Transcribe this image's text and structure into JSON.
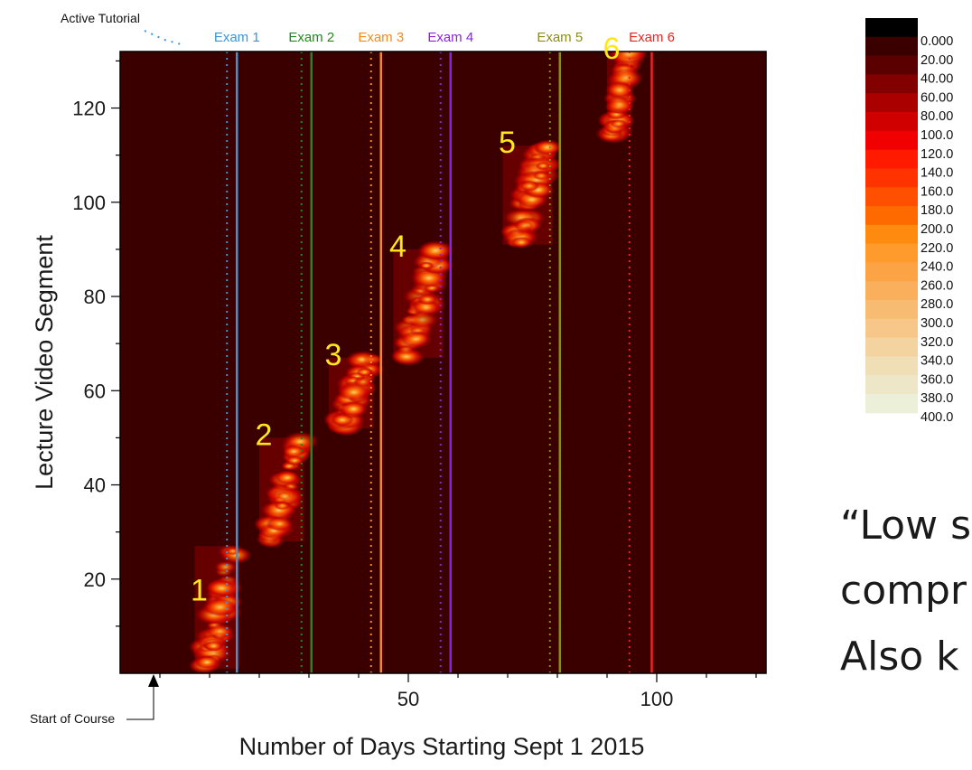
{
  "chart_data": {
    "type": "heatmap",
    "title": "",
    "xlabel": "Number of Days Starting Sept 1 2015",
    "ylabel": "Lecture Video Segment",
    "xlim": [
      -8,
      122
    ],
    "ylim": [
      0,
      132
    ],
    "x_ticks": [
      50,
      100
    ],
    "y_ticks": [
      20,
      40,
      60,
      80,
      100,
      120
    ],
    "grid": false,
    "background_color": "#3a0000",
    "exams": [
      {
        "label": "Exam 1",
        "day": 15.5,
        "tutorial_day": 13.5,
        "color": "#3b95d6"
      },
      {
        "label": "Exam 2",
        "day": 30.5,
        "tutorial_day": 28.5,
        "color": "#1e8a1e"
      },
      {
        "label": "Exam 3",
        "day": 44.5,
        "tutorial_day": 42.5,
        "color": "#f58a20"
      },
      {
        "label": "Exam 4",
        "day": 58.5,
        "tutorial_day": 56.5,
        "color": "#8b22e0"
      },
      {
        "label": "Exam 5",
        "day": 80.5,
        "tutorial_day": 78.5,
        "color": "#8c8c1a"
      },
      {
        "label": "Exam 6",
        "day": 99,
        "tutorial_day": 94.5,
        "color": "#ee2222"
      }
    ],
    "active_tutorial_label": "Active Tutorial",
    "active_tutorial_color": "#3b95d6",
    "start_of_course": {
      "label": "Start of Course",
      "day": 1
    },
    "units": [
      {
        "label": "1",
        "day_range": [
          7,
          16
        ],
        "segment_range": [
          1,
          27
        ]
      },
      {
        "label": "2",
        "day_range": [
          20,
          29
        ],
        "segment_range": [
          28,
          50
        ]
      },
      {
        "label": "3",
        "day_range": [
          34,
          43
        ],
        "segment_range": [
          52,
          67
        ]
      },
      {
        "label": "4",
        "day_range": [
          47,
          57
        ],
        "segment_range": [
          67,
          90
        ]
      },
      {
        "label": "5",
        "day_range": [
          69,
          79
        ],
        "segment_range": [
          91,
          112
        ]
      },
      {
        "label": "6",
        "day_range": [
          90,
          95
        ],
        "segment_range": [
          114,
          132
        ]
      }
    ],
    "colorscale": {
      "labels": [
        "0.000",
        "20.00",
        "40.00",
        "60.00",
        "80.00",
        "100.0",
        "120.0",
        "140.0",
        "160.0",
        "180.0",
        "200.0",
        "220.0",
        "240.0",
        "260.0",
        "280.0",
        "300.0",
        "320.0",
        "340.0",
        "360.0",
        "380.0",
        "400.0"
      ],
      "colors": [
        "#000000",
        "#3a0000",
        "#5a0000",
        "#820000",
        "#aa0000",
        "#d00000",
        "#f00000",
        "#ff1a00",
        "#ff3300",
        "#ff4f00",
        "#ff6a00",
        "#ff8a10",
        "#ff9a2c",
        "#fca345",
        "#f9af5c",
        "#f8bb72",
        "#f6c788",
        "#f3d39f",
        "#f0deb7",
        "#ede7c8",
        "#ecf0d8"
      ]
    }
  },
  "side_text": {
    "line1": "“Low s",
    "line2": "compr",
    "line3": "Also k"
  }
}
